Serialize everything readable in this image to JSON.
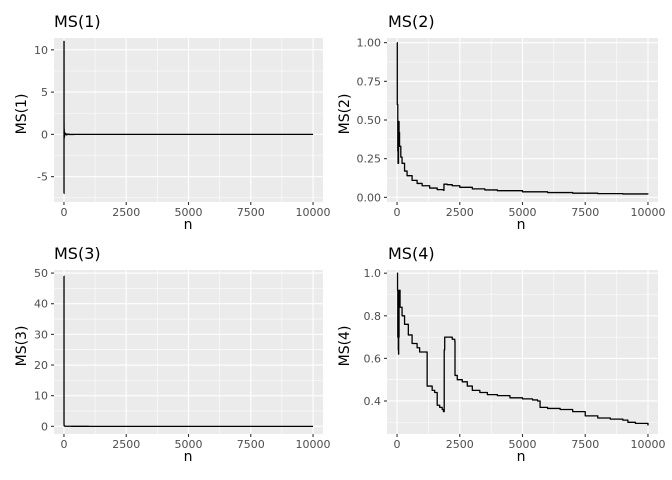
{
  "chart_data": [
    {
      "type": "line",
      "title": "MS(1)",
      "xlabel": "n",
      "ylabel": "MS(1)",
      "xlim": [
        -400,
        10400
      ],
      "ylim": [
        -8,
        11.4
      ],
      "xticks": [
        0,
        2500,
        5000,
        7500,
        10000
      ],
      "xtick_labels": [
        "0",
        "2500",
        "5000",
        "7500",
        "10000"
      ],
      "yticks": [
        -5,
        0,
        5,
        10
      ],
      "ytick_labels": [
        "-5",
        "0",
        "5",
        "10"
      ],
      "grid": true,
      "series": [
        {
          "x": [
            1,
            2,
            3,
            5,
            8,
            12,
            20,
            30,
            50,
            80,
            120,
            200,
            400,
            1000,
            2500,
            5000,
            7500,
            10000
          ],
          "y": [
            -7,
            11,
            1.5,
            -0.5,
            0.6,
            -0.3,
            0.25,
            0.1,
            0.05,
            -0.05,
            0.02,
            -0.01,
            0.0,
            0.0,
            0.0,
            0.0,
            0.0,
            0.0
          ]
        }
      ]
    },
    {
      "type": "line",
      "title": "MS(2)",
      "xlabel": "n",
      "ylabel": "MS(2)",
      "xlim": [
        -400,
        10400
      ],
      "ylim": [
        -0.03,
        1.03
      ],
      "xticks": [
        0,
        2500,
        5000,
        7500,
        10000
      ],
      "xtick_labels": [
        "0",
        "2500",
        "5000",
        "7500",
        "10000"
      ],
      "yticks": [
        0,
        0.25,
        0.5,
        0.75,
        1.0
      ],
      "ytick_labels": [
        "0.00",
        "0.25",
        "0.50",
        "0.75",
        "1.00"
      ],
      "grid": true,
      "series": [
        {
          "x": [
            1,
            10,
            30,
            40,
            60,
            80,
            100,
            150,
            200,
            300,
            400,
            600,
            800,
            1000,
            1300,
            1600,
            1850,
            1870,
            2000,
            2200,
            2500,
            3000,
            3500,
            4000,
            5000,
            6000,
            7000,
            8000,
            9000,
            10000
          ],
          "y": [
            1.0,
            0.6,
            0.3,
            0.22,
            0.49,
            0.42,
            0.33,
            0.26,
            0.22,
            0.17,
            0.14,
            0.11,
            0.09,
            0.075,
            0.06,
            0.05,
            0.045,
            0.085,
            0.082,
            0.075,
            0.065,
            0.055,
            0.048,
            0.043,
            0.036,
            0.031,
            0.027,
            0.024,
            0.022,
            0.02
          ]
        }
      ]
    },
    {
      "type": "line",
      "title": "MS(3)",
      "xlabel": "n",
      "ylabel": "MS(3)",
      "xlim": [
        -400,
        10400
      ],
      "ylim": [
        -2.5,
        51
      ],
      "xticks": [
        0,
        2500,
        5000,
        7500,
        10000
      ],
      "xtick_labels": [
        "0",
        "2500",
        "5000",
        "7500",
        "10000"
      ],
      "yticks": [
        0,
        10,
        20,
        30,
        40,
        50
      ],
      "ytick_labels": [
        "0",
        "10",
        "20",
        "30",
        "40",
        "50"
      ],
      "grid": true,
      "series": [
        {
          "x": [
            1,
            2,
            4,
            8,
            15,
            30,
            60,
            120,
            300,
            1000,
            2500,
            5000,
            7500,
            10000
          ],
          "y": [
            49,
            1.0,
            0.3,
            0.15,
            0.1,
            0.05,
            0.03,
            0.02,
            0.01,
            0.0,
            0.0,
            0.0,
            0.0,
            0.0
          ]
        }
      ]
    },
    {
      "type": "line",
      "title": "MS(4)",
      "xlabel": "n",
      "ylabel": "MS(4)",
      "xlim": [
        -400,
        10400
      ],
      "ylim": [
        0.245,
        1.015
      ],
      "xticks": [
        0,
        2500,
        5000,
        7500,
        10000
      ],
      "xtick_labels": [
        "0",
        "2500",
        "5000",
        "7500",
        "10000"
      ],
      "yticks": [
        0.4,
        0.6,
        0.8,
        1.0
      ],
      "ytick_labels": [
        "0.4",
        "0.6",
        "0.8",
        "1.0"
      ],
      "grid": true,
      "series": [
        {
          "x": [
            1,
            20,
            30,
            50,
            55,
            60,
            65,
            70,
            80,
            120,
            200,
            300,
            450,
            600,
            800,
            900,
            1200,
            1400,
            1500,
            1600,
            1700,
            1800,
            1850,
            1880,
            1900,
            2000,
            2200,
            2300,
            2310,
            2400,
            2600,
            2800,
            3000,
            3300,
            3600,
            4000,
            4500,
            5000,
            5400,
            5600,
            5700,
            6000,
            6500,
            7000,
            7500,
            8000,
            8500,
            9000,
            9200,
            9500,
            10000
          ],
          "y": [
            1.0,
            0.92,
            0.7,
            0.64,
            0.88,
            0.62,
            0.9,
            0.7,
            0.92,
            0.84,
            0.8,
            0.76,
            0.71,
            0.67,
            0.65,
            0.63,
            0.47,
            0.45,
            0.44,
            0.38,
            0.37,
            0.36,
            0.35,
            0.64,
            0.7,
            0.7,
            0.69,
            0.68,
            0.52,
            0.5,
            0.49,
            0.47,
            0.45,
            0.44,
            0.43,
            0.425,
            0.415,
            0.41,
            0.405,
            0.4,
            0.37,
            0.365,
            0.36,
            0.35,
            0.33,
            0.32,
            0.315,
            0.31,
            0.3,
            0.295,
            0.285
          ]
        }
      ]
    }
  ]
}
